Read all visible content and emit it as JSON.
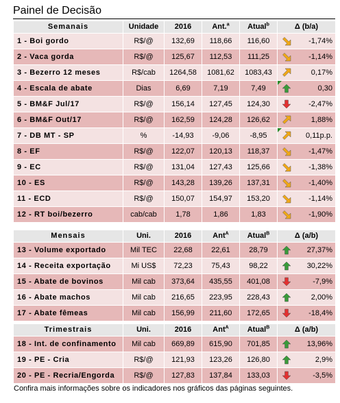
{
  "title": "Painel de Decisão",
  "footnote": "Confira mais informações sobre os indicadores nos gráficos das páginas seguintes.",
  "sections": [
    {
      "header": {
        "label": "Semanais",
        "unit": "Unidade",
        "y2016": "2016",
        "ant": "Ant.",
        "ant_sup": "a",
        "atual": "Atual",
        "atual_sup": "b",
        "delta": "Δ (b/a)"
      },
      "rows": [
        {
          "label": "1 - Boi gordo",
          "unit": "R$/@",
          "y2016": "132,69",
          "ant": "118,66",
          "atual": "116,60",
          "delta": "-1,74%",
          "dir": "down-right",
          "color": "#f0a818"
        },
        {
          "label": "2 - Vaca gorda",
          "unit": "R$/@",
          "y2016": "125,67",
          "ant": "112,53",
          "atual": "111,25",
          "delta": "-1,14%",
          "dir": "down-right",
          "color": "#f0a818"
        },
        {
          "label": "3 - Bezerro 12 meses",
          "unit": "R$/cab",
          "y2016": "1264,58",
          "ant": "1081,62",
          "atual": "1083,43",
          "delta": "0,17%",
          "dir": "up-right",
          "color": "#f0a818"
        },
        {
          "label": "4 - Escala de abate",
          "unit": "Dias",
          "y2016": "6,69",
          "ant": "7,19",
          "atual": "7,49",
          "delta": "0,30",
          "dir": "up",
          "color": "#3a9a3a",
          "tri": true
        },
        {
          "label": "5 - BM&F Jul/17",
          "unit": "R$/@",
          "y2016": "156,14",
          "ant": "127,45",
          "atual": "124,30",
          "delta": "-2,47%",
          "dir": "down",
          "color": "#e23030"
        },
        {
          "label": "6 - BM&F Out/17",
          "unit": "R$/@",
          "y2016": "162,59",
          "ant": "124,28",
          "atual": "126,62",
          "delta": "1,88%",
          "dir": "up-right",
          "color": "#f0a818"
        },
        {
          "label": "7 - DB MT - SP",
          "unit": "%",
          "y2016": "-14,93",
          "ant": "-9,06",
          "atual": "-8,95",
          "delta": "0,11p.p.",
          "dir": "up-right",
          "color": "#f0a818",
          "tri": true
        },
        {
          "label": "8 - EF",
          "unit": "R$/@",
          "y2016": "122,07",
          "ant": "120,13",
          "atual": "118,37",
          "delta": "-1,47%",
          "dir": "down-right",
          "color": "#f0a818"
        },
        {
          "label": "9 - EC",
          "unit": "R$/@",
          "y2016": "131,04",
          "ant": "127,43",
          "atual": "125,66",
          "delta": "-1,38%",
          "dir": "down-right",
          "color": "#f0a818"
        },
        {
          "label": "10 - ES",
          "unit": "R$/@",
          "y2016": "143,28",
          "ant": "139,26",
          "atual": "137,31",
          "delta": "-1,40%",
          "dir": "down-right",
          "color": "#f0a818"
        },
        {
          "label": "11 - ECD",
          "unit": "R$/@",
          "y2016": "150,07",
          "ant": "154,97",
          "atual": "153,20",
          "delta": "-1,14%",
          "dir": "down-right",
          "color": "#f0a818"
        },
        {
          "label": "12 - RT boi/bezerro",
          "unit": "cab/cab",
          "y2016": "1,78",
          "ant": "1,86",
          "atual": "1,83",
          "delta": "-1,90%",
          "dir": "down-right",
          "color": "#f0a818"
        }
      ]
    },
    {
      "header": {
        "label": "Mensais",
        "unit": "Uni.",
        "y2016": "2016",
        "ant": "Ant",
        "ant_sup": "A",
        "atual": "Atual",
        "atual_sup": "B",
        "delta": "Δ (a/b)"
      },
      "rows": [
        {
          "label": "13 - Volume exportado",
          "unit": "Mil TEC",
          "y2016": "22,68",
          "ant": "22,61",
          "atual": "28,79",
          "delta": "27,37%",
          "dir": "up",
          "color": "#3a9a3a"
        },
        {
          "label": "14 - Receita exportação",
          "unit": "Mi US$",
          "y2016": "72,23",
          "ant": "75,43",
          "atual": "98,22",
          "delta": "30,22%",
          "dir": "up",
          "color": "#3a9a3a"
        },
        {
          "label": "15 - Abate de bovinos",
          "unit": "Mil cab",
          "y2016": "373,64",
          "ant": "435,55",
          "atual": "401,08",
          "delta": "-7,9%",
          "dir": "down",
          "color": "#e23030"
        },
        {
          "label": "16 - Abate machos",
          "unit": "Mil cab",
          "y2016": "216,65",
          "ant": "223,95",
          "atual": "228,43",
          "delta": "2,00%",
          "dir": "up",
          "color": "#3a9a3a"
        },
        {
          "label": "17 - Abate fêmeas",
          "unit": "Mil cab",
          "y2016": "156,99",
          "ant": "211,60",
          "atual": "172,65",
          "delta": "-18,4%",
          "dir": "down",
          "color": "#e23030"
        }
      ]
    },
    {
      "header": {
        "label": "Trimestrais",
        "unit": "Uni.",
        "y2016": "2016",
        "ant": "Ant",
        "ant_sup": "A",
        "atual": "Atual",
        "atual_sup": "B",
        "delta": "Δ (a/b)"
      },
      "rows": [
        {
          "label": "18 - Int. de confinamento",
          "unit": "Mil cab",
          "y2016": "669,89",
          "ant": "615,90",
          "atual": "701,85",
          "delta": "13,96%",
          "dir": "up",
          "color": "#3a9a3a"
        },
        {
          "label": "19 - PE - Cria",
          "unit": "R$/@",
          "y2016": "121,93",
          "ant": "123,26",
          "atual": "126,80",
          "delta": "2,9%",
          "dir": "up",
          "color": "#3a9a3a"
        },
        {
          "label": "20 - PE - Recria/Engorda",
          "unit": "R$/@",
          "y2016": "127,83",
          "ant": "137,84",
          "atual": "133,03",
          "delta": "-3,5%",
          "dir": "down",
          "color": "#e23030"
        }
      ]
    }
  ]
}
